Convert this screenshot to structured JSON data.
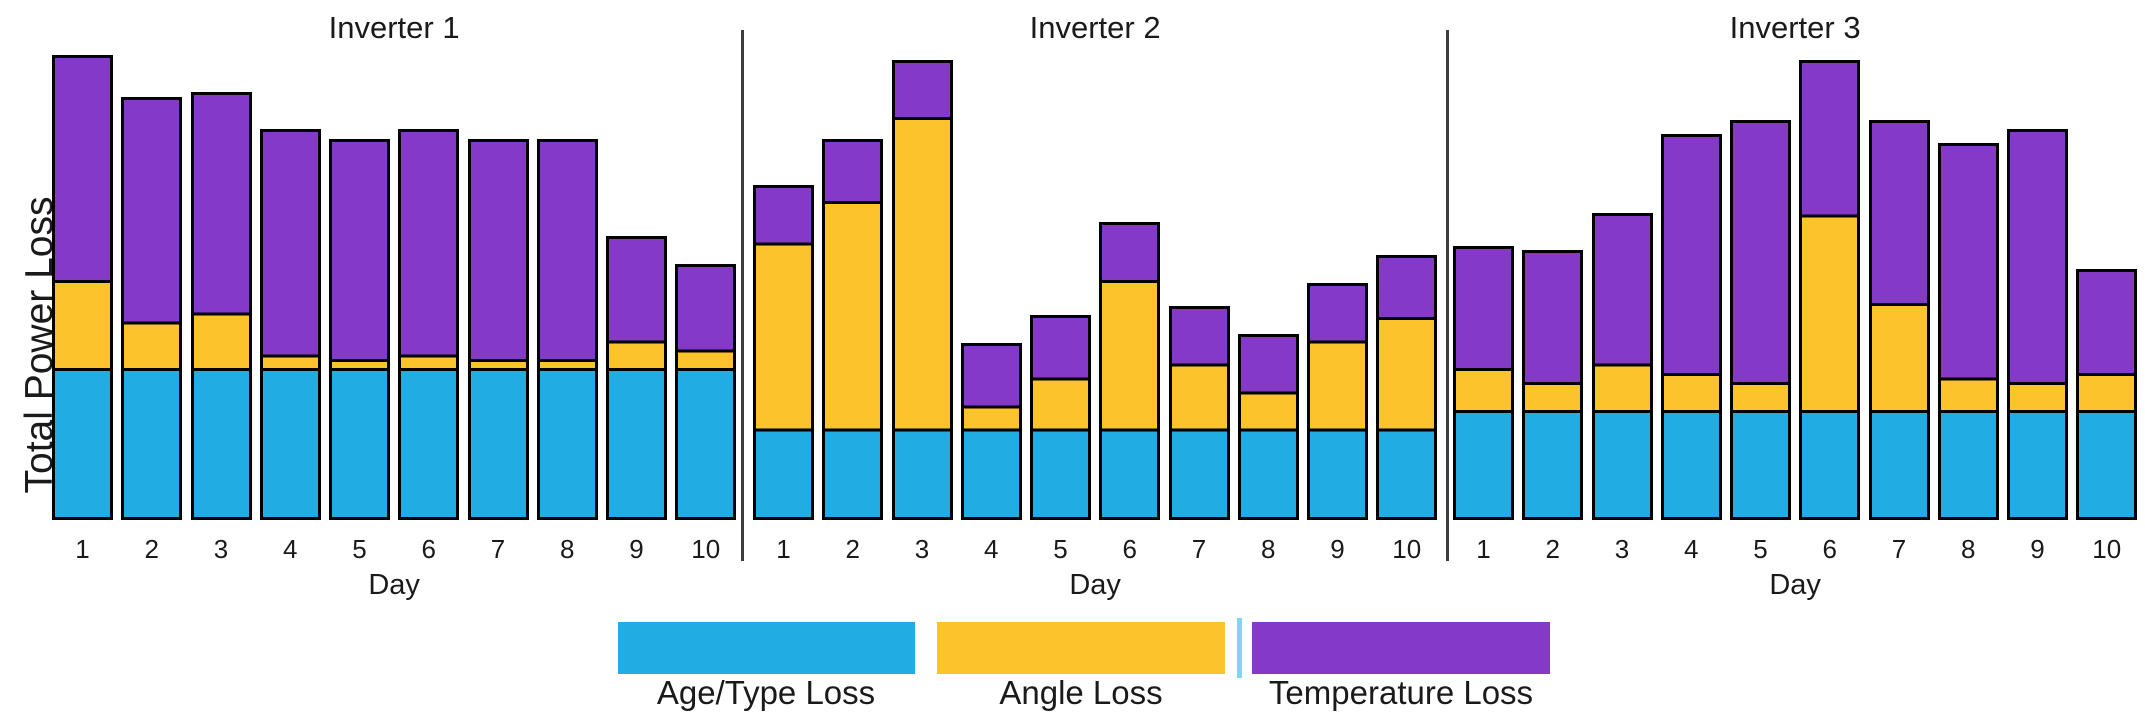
{
  "y_axis_label": "Total Power Loss",
  "legend": [
    {
      "label": "Age/Type Loss",
      "color": "#21ace3"
    },
    {
      "label": "Angle Loss",
      "color": "#fdc32b"
    },
    {
      "label": "Temperature Loss",
      "color": "#8539c7"
    }
  ],
  "chart_data": {
    "type": "bar",
    "stacked": true,
    "xlabel": "Day",
    "ylabel": "Total Power Loss",
    "x_categories": [
      "1",
      "2",
      "3",
      "4",
      "5",
      "6",
      "7",
      "8",
      "9",
      "10"
    ],
    "y_axis": {
      "ticks": "none",
      "range_units": [
        0,
        100
      ],
      "note": "relative units, axis unlabeled"
    },
    "grid": false,
    "legend_position": "bottom",
    "series_names": [
      "Age/Type Loss",
      "Angle Loss",
      "Temperature Loss"
    ],
    "panels": [
      {
        "title": "Inverter 1",
        "series": [
          {
            "name": "Age/Type Loss",
            "values": [
              32,
              32,
              32,
              32,
              32,
              32,
              32,
              32,
              32,
              32
            ]
          },
          {
            "name": "Angle Loss",
            "values": [
              19,
              10,
              12,
              3,
              2,
              3,
              2,
              2,
              6,
              4
            ]
          },
          {
            "name": "Temperature Loss",
            "values": [
              49,
              49,
              48,
              49,
              48,
              49,
              48,
              48,
              23,
              19
            ]
          }
        ],
        "totals": [
          100,
          91,
          92,
          84,
          82,
          84,
          82,
          82,
          61,
          55
        ]
      },
      {
        "title": "Inverter 2",
        "series": [
          {
            "name": "Age/Type Loss",
            "values": [
              19,
              19,
              19,
              19,
              19,
              19,
              19,
              19,
              19,
              19
            ]
          },
          {
            "name": "Angle Loss",
            "values": [
              40,
              49,
              67,
              5,
              11,
              32,
              14,
              8,
              19,
              24
            ]
          },
          {
            "name": "Temperature Loss",
            "values": [
              13,
              14,
              13,
              14,
              14,
              13,
              13,
              13,
              13,
              14
            ]
          }
        ],
        "totals": [
          72,
          82,
          99,
          38,
          44,
          64,
          46,
          40,
          51,
          57
        ]
      },
      {
        "title": "Inverter 3",
        "series": [
          {
            "name": "Age/Type Loss",
            "values": [
              23,
              23,
              23,
              23,
              23,
              23,
              23,
              23,
              23,
              23
            ]
          },
          {
            "name": "Angle Loss",
            "values": [
              9,
              6,
              10,
              8,
              6,
              42,
              23,
              7,
              6,
              8
            ]
          },
          {
            "name": "Temperature Loss",
            "values": [
              27,
              29,
              33,
              52,
              57,
              34,
              40,
              51,
              55,
              23
            ]
          }
        ],
        "totals": [
          59,
          58,
          66,
          83,
          86,
          99,
          86,
          81,
          84,
          54
        ]
      }
    ]
  }
}
